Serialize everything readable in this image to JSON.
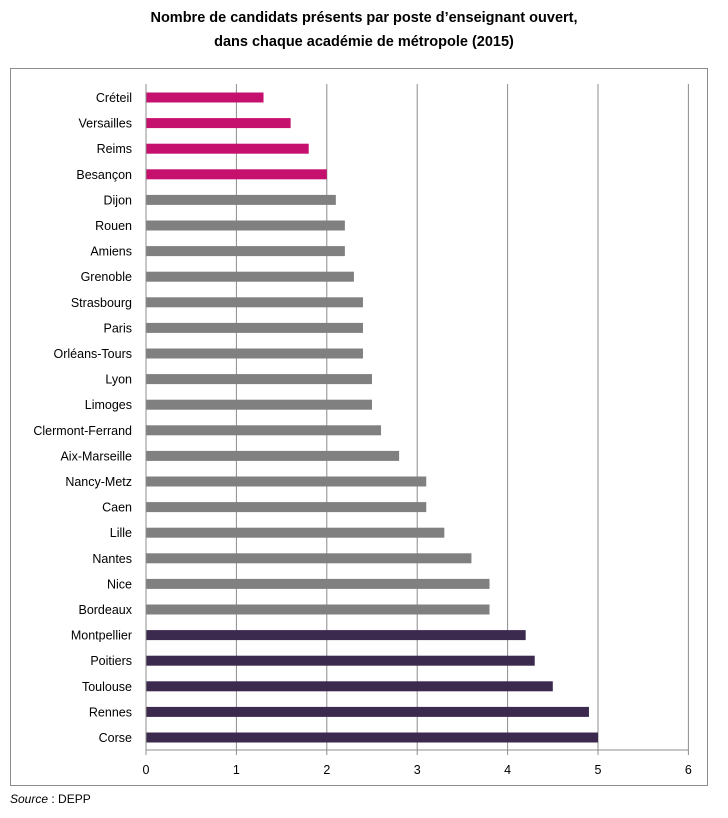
{
  "chart_data": {
    "type": "bar",
    "orientation": "horizontal",
    "title_lines": [
      "Nombre de candidats présents par poste d’enseignant ouvert,",
      "dans chaque académie de métropole (2015)"
    ],
    "categories": [
      "Créteil",
      "Versailles",
      "Reims",
      "Besançon",
      "Dijon",
      "Rouen",
      "Amiens",
      "Grenoble",
      "Strasbourg",
      "Paris",
      "Orléans-Tours",
      "Lyon",
      "Limoges",
      "Clermont-Ferrand",
      "Aix-Marseille",
      "Nancy-Metz",
      "Caen",
      "Lille",
      "Nantes",
      "Nice",
      "Bordeaux",
      "Montpellier",
      "Poitiers",
      "Toulouse",
      "Rennes",
      "Corse"
    ],
    "values": [
      1.3,
      1.6,
      1.8,
      2.0,
      2.1,
      2.2,
      2.2,
      2.3,
      2.4,
      2.4,
      2.4,
      2.5,
      2.5,
      2.6,
      2.8,
      3.1,
      3.1,
      3.3,
      3.6,
      3.8,
      3.8,
      4.2,
      4.3,
      4.5,
      4.9,
      5.0
    ],
    "bar_colors": [
      "#c6106e",
      "#c6106e",
      "#c6106e",
      "#c6106e",
      "#808080",
      "#808080",
      "#808080",
      "#808080",
      "#808080",
      "#808080",
      "#808080",
      "#808080",
      "#808080",
      "#808080",
      "#808080",
      "#808080",
      "#808080",
      "#808080",
      "#808080",
      "#808080",
      "#808080",
      "#3c2a4e",
      "#3c2a4e",
      "#3c2a4e",
      "#3c2a4e",
      "#3c2a4e"
    ],
    "xlim": [
      0,
      6
    ],
    "xticks": [
      "0",
      "1",
      "2",
      "3",
      "4",
      "5",
      "6"
    ],
    "grid": "vertical",
    "xlabel": "",
    "ylabel": ""
  },
  "source": {
    "label": "Source",
    "sep": " : ",
    "value": "DEPP"
  }
}
